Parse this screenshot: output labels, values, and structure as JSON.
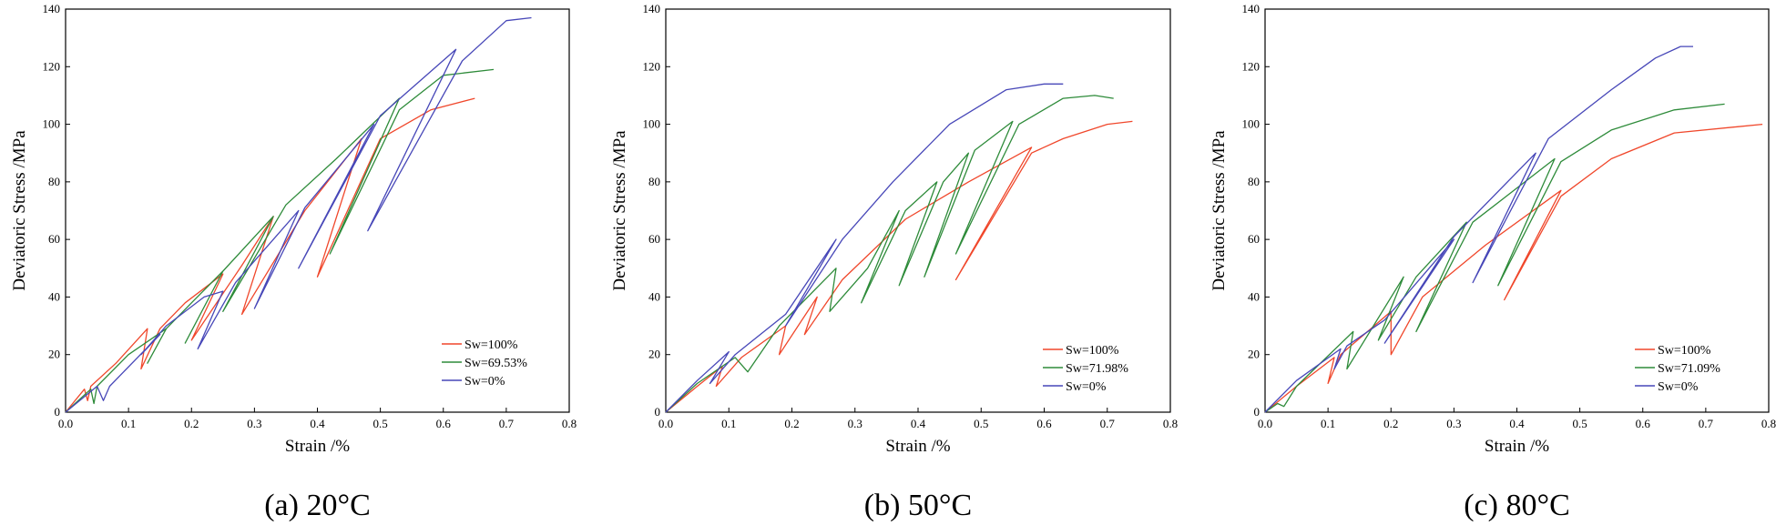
{
  "colors": {
    "sw100": "#f0472b",
    "swmid": "#2e8b3a",
    "sw0": "#4747b8"
  },
  "chart_data": [
    {
      "type": "line",
      "caption": "(a) 20°C",
      "xlabel": "Strain /%",
      "ylabel": "Deviatoric Stress /MPa",
      "xlim": [
        0.0,
        0.8
      ],
      "ylim": [
        0,
        140
      ],
      "xticks": [
        "0.0",
        "0.1",
        "0.2",
        "0.3",
        "0.4",
        "0.5",
        "0.6",
        "0.7",
        "0.8"
      ],
      "yticks": [
        "0",
        "20",
        "40",
        "60",
        "80",
        "100",
        "120",
        "140"
      ],
      "legend": [
        "Sw=100%",
        "Sw=69.53%",
        "Sw=0%"
      ],
      "series": [
        {
          "name": "Sw=100%",
          "color": "sw100",
          "points": [
            [
              0,
              0
            ],
            [
              0.03,
              8
            ],
            [
              0.035,
              4
            ],
            [
              0.04,
              9
            ],
            [
              0.08,
              17
            ],
            [
              0.13,
              29
            ],
            [
              0.12,
              15
            ],
            [
              0.15,
              29
            ],
            [
              0.19,
              38
            ],
            [
              0.25,
              48
            ],
            [
              0.2,
              25
            ],
            [
              0.28,
              51
            ],
            [
              0.33,
              68
            ],
            [
              0.28,
              34
            ],
            [
              0.38,
              70
            ],
            [
              0.47,
              95
            ],
            [
              0.4,
              47
            ],
            [
              0.5,
              95
            ],
            [
              0.58,
              105
            ],
            [
              0.65,
              109
            ]
          ]
        },
        {
          "name": "Sw=69.53%",
          "color": "swmid",
          "points": [
            [
              0,
              0
            ],
            [
              0.04,
              8
            ],
            [
              0.045,
              3
            ],
            [
              0.05,
              9
            ],
            [
              0.1,
              20
            ],
            [
              0.16,
              29
            ],
            [
              0.13,
              17
            ],
            [
              0.16,
              29
            ],
            [
              0.2,
              38
            ],
            [
              0.25,
              49
            ],
            [
              0.19,
              24
            ],
            [
              0.25,
              49
            ],
            [
              0.33,
              68
            ],
            [
              0.25,
              35
            ],
            [
              0.35,
              72
            ],
            [
              0.43,
              88
            ],
            [
              0.53,
              109
            ],
            [
              0.42,
              55
            ],
            [
              0.53,
              105
            ],
            [
              0.6,
              117
            ],
            [
              0.68,
              119
            ]
          ]
        },
        {
          "name": "Sw=0%",
          "color": "sw0",
          "points": [
            [
              0,
              0
            ],
            [
              0.05,
              9
            ],
            [
              0.06,
              4
            ],
            [
              0.07,
              9
            ],
            [
              0.15,
              27
            ],
            [
              0.12,
              20
            ],
            [
              0.16,
              30
            ],
            [
              0.22,
              40
            ],
            [
              0.25,
              42
            ],
            [
              0.21,
              22
            ],
            [
              0.27,
              45
            ],
            [
              0.37,
              70
            ],
            [
              0.3,
              36
            ],
            [
              0.38,
              71
            ],
            [
              0.49,
              100
            ],
            [
              0.37,
              50
            ],
            [
              0.5,
              103
            ],
            [
              0.62,
              126
            ],
            [
              0.48,
              63
            ],
            [
              0.63,
              122
            ],
            [
              0.7,
              136
            ],
            [
              0.74,
              137
            ]
          ]
        }
      ]
    },
    {
      "type": "line",
      "caption": "(b) 50°C",
      "xlabel": "Strain /%",
      "ylabel": "Deviatoric Stress /MPa",
      "xlim": [
        0.0,
        0.8
      ],
      "ylim": [
        0,
        140
      ],
      "xticks": [
        "0.0",
        "0.1",
        "0.2",
        "0.3",
        "0.4",
        "0.5",
        "0.6",
        "0.7",
        "0.8"
      ],
      "yticks": [
        "0",
        "20",
        "40",
        "60",
        "80",
        "100",
        "120",
        "140"
      ],
      "legend": [
        "Sw=100%",
        "Sw=71.98%",
        "Sw=0%"
      ],
      "series": [
        {
          "name": "Sw=100%",
          "color": "sw100",
          "points": [
            [
              0,
              0
            ],
            [
              0.05,
              9
            ],
            [
              0.09,
              16
            ],
            [
              0.08,
              9
            ],
            [
              0.12,
              19
            ],
            [
              0.19,
              30
            ],
            [
              0.18,
              20
            ],
            [
              0.24,
              40
            ],
            [
              0.22,
              27
            ],
            [
              0.28,
              46
            ],
            [
              0.38,
              67
            ],
            [
              0.48,
              80
            ],
            [
              0.58,
              92
            ],
            [
              0.46,
              46
            ],
            [
              0.58,
              90
            ],
            [
              0.63,
              95
            ],
            [
              0.7,
              100
            ],
            [
              0.74,
              101
            ]
          ]
        },
        {
          "name": "Sw=71.98%",
          "color": "swmid",
          "points": [
            [
              0,
              0
            ],
            [
              0.05,
              10
            ],
            [
              0.11,
              19
            ],
            [
              0.13,
              14
            ],
            [
              0.18,
              30
            ],
            [
              0.27,
              50
            ],
            [
              0.26,
              35
            ],
            [
              0.32,
              50
            ],
            [
              0.37,
              70
            ],
            [
              0.31,
              38
            ],
            [
              0.38,
              70
            ],
            [
              0.43,
              80
            ],
            [
              0.37,
              44
            ],
            [
              0.44,
              80
            ],
            [
              0.48,
              90
            ],
            [
              0.41,
              47
            ],
            [
              0.49,
              91
            ],
            [
              0.55,
              101
            ],
            [
              0.46,
              55
            ],
            [
              0.56,
              100
            ],
            [
              0.63,
              109
            ],
            [
              0.68,
              110
            ],
            [
              0.71,
              109
            ]
          ]
        },
        {
          "name": "Sw=0%",
          "color": "sw0",
          "points": [
            [
              0,
              0
            ],
            [
              0.05,
              11
            ],
            [
              0.1,
              21
            ],
            [
              0.07,
              10
            ],
            [
              0.11,
              20
            ],
            [
              0.19,
              34
            ],
            [
              0.27,
              60
            ],
            [
              0.19,
              30
            ],
            [
              0.28,
              60
            ],
            [
              0.36,
              80
            ],
            [
              0.45,
              100
            ],
            [
              0.54,
              112
            ],
            [
              0.6,
              114
            ],
            [
              0.63,
              114
            ]
          ]
        }
      ]
    },
    {
      "type": "line",
      "caption": "(c) 80°C",
      "xlabel": "Strain /%",
      "ylabel": "Deviatoric Stress /MPa",
      "xlim": [
        0.0,
        0.8
      ],
      "ylim": [
        0,
        140
      ],
      "xticks": [
        "0.0",
        "0.1",
        "0.2",
        "0.3",
        "0.4",
        "0.5",
        "0.6",
        "0.7",
        "0.8"
      ],
      "yticks": [
        "0",
        "20",
        "40",
        "60",
        "80",
        "100",
        "120",
        "140"
      ],
      "legend": [
        "Sw=100%",
        "Sw=71.09%",
        "Sw=0%"
      ],
      "series": [
        {
          "name": "Sw=100%",
          "color": "sw100",
          "points": [
            [
              0,
              0
            ],
            [
              0.05,
              9
            ],
            [
              0.11,
              19
            ],
            [
              0.1,
              10
            ],
            [
              0.12,
              20
            ],
            [
              0.2,
              35
            ],
            [
              0.2,
              20
            ],
            [
              0.25,
              40
            ],
            [
              0.35,
              58
            ],
            [
              0.47,
              77
            ],
            [
              0.38,
              39
            ],
            [
              0.47,
              75
            ],
            [
              0.55,
              88
            ],
            [
              0.65,
              97
            ],
            [
              0.79,
              100
            ]
          ]
        },
        {
          "name": "Sw=71.09%",
          "color": "swmid",
          "points": [
            [
              0,
              0
            ],
            [
              0.02,
              3
            ],
            [
              0.03,
              2
            ],
            [
              0.05,
              9
            ],
            [
              0.14,
              28
            ],
            [
              0.13,
              15
            ],
            [
              0.22,
              47
            ],
            [
              0.18,
              25
            ],
            [
              0.24,
              47
            ],
            [
              0.32,
              66
            ],
            [
              0.24,
              28
            ],
            [
              0.33,
              66
            ],
            [
              0.46,
              88
            ],
            [
              0.37,
              44
            ],
            [
              0.47,
              87
            ],
            [
              0.55,
              98
            ],
            [
              0.65,
              105
            ],
            [
              0.73,
              107
            ]
          ]
        },
        {
          "name": "Sw=0%",
          "color": "sw0",
          "points": [
            [
              0,
              0
            ],
            [
              0.05,
              11
            ],
            [
              0.12,
              22
            ],
            [
              0.11,
              15
            ],
            [
              0.13,
              23
            ],
            [
              0.19,
              32
            ],
            [
              0.3,
              60
            ],
            [
              0.19,
              24
            ],
            [
              0.3,
              61
            ],
            [
              0.43,
              90
            ],
            [
              0.33,
              45
            ],
            [
              0.45,
              95
            ],
            [
              0.55,
              112
            ],
            [
              0.62,
              123
            ],
            [
              0.66,
              127
            ],
            [
              0.68,
              127
            ]
          ]
        }
      ]
    }
  ]
}
